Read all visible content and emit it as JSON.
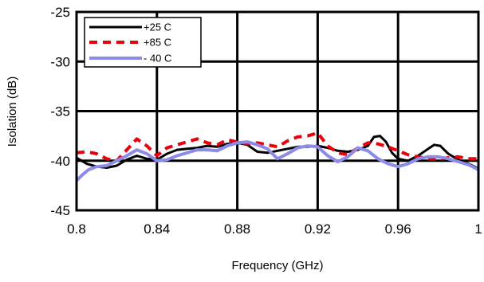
{
  "chart_data": {
    "type": "line",
    "title": "",
    "xlabel": "Frequency (GHz)",
    "ylabel": "Isolation (dB)",
    "xlim": [
      0.8,
      1.0
    ],
    "ylim": [
      -45,
      -25
    ],
    "x_ticks": [
      0.8,
      0.84,
      0.88,
      0.92,
      0.96,
      1.0
    ],
    "x_tick_labels": [
      "0.8",
      "0.84",
      "0.88",
      "0.92",
      "0.96",
      "1"
    ],
    "y_ticks": [
      -45,
      -40,
      -35,
      -30,
      -25
    ],
    "y_tick_labels": [
      "-45",
      "-40",
      "-35",
      "-30",
      "-25"
    ],
    "grid": true,
    "legend_position": "top-left",
    "series": [
      {
        "name": "+25 C",
        "color": "#000000",
        "style": "solid",
        "x": [
          0.8,
          0.805,
          0.81,
          0.815,
          0.82,
          0.825,
          0.83,
          0.835,
          0.84,
          0.845,
          0.85,
          0.855,
          0.86,
          0.865,
          0.87,
          0.875,
          0.88,
          0.885,
          0.89,
          0.895,
          0.9,
          0.905,
          0.91,
          0.915,
          0.92,
          0.925,
          0.93,
          0.935,
          0.94,
          0.945,
          0.948,
          0.951,
          0.954,
          0.957,
          0.96,
          0.965,
          0.97,
          0.975,
          0.978,
          0.981,
          0.985,
          0.99,
          0.995,
          1.0
        ],
        "y": [
          -39.7,
          -40.3,
          -40.6,
          -40.7,
          -40.5,
          -39.9,
          -39.5,
          -39.8,
          -39.9,
          -39.3,
          -38.9,
          -38.8,
          -38.7,
          -38.5,
          -38.6,
          -38.3,
          -38.2,
          -38.4,
          -39.1,
          -39.2,
          -39.0,
          -38.8,
          -38.6,
          -38.6,
          -38.5,
          -38.7,
          -39.0,
          -39.1,
          -38.9,
          -38.5,
          -37.6,
          -37.5,
          -38.1,
          -39.2,
          -39.8,
          -40.0,
          -39.5,
          -38.8,
          -38.4,
          -38.5,
          -39.3,
          -39.9,
          -40.3,
          -40.8
        ]
      },
      {
        "name": "+85 C",
        "color": "#e8000b",
        "style": "dashed",
        "x": [
          0.8,
          0.805,
          0.81,
          0.815,
          0.82,
          0.825,
          0.83,
          0.835,
          0.84,
          0.845,
          0.85,
          0.855,
          0.86,
          0.865,
          0.87,
          0.875,
          0.88,
          0.885,
          0.89,
          0.895,
          0.9,
          0.905,
          0.91,
          0.915,
          0.92,
          0.925,
          0.93,
          0.935,
          0.94,
          0.945,
          0.95,
          0.955,
          0.96,
          0.965,
          0.97,
          0.975,
          0.98,
          0.985,
          0.99,
          0.995,
          1.0
        ],
        "y": [
          -39.2,
          -39.1,
          -39.3,
          -39.8,
          -40.0,
          -38.9,
          -37.8,
          -38.5,
          -39.5,
          -38.7,
          -38.4,
          -38.1,
          -37.8,
          -38.2,
          -38.4,
          -37.9,
          -38.1,
          -38.3,
          -38.2,
          -38.4,
          -38.6,
          -38.0,
          -37.6,
          -37.5,
          -37.2,
          -38.5,
          -39.2,
          -39.4,
          -38.7,
          -38.2,
          -38.3,
          -38.6,
          -39.0,
          -39.4,
          -39.6,
          -39.8,
          -39.8,
          -39.7,
          -39.6,
          -39.8,
          -39.8
        ]
      },
      {
        "name": "- 40 C",
        "color": "#8c8ce8",
        "style": "solid",
        "x": [
          0.8,
          0.803,
          0.806,
          0.81,
          0.815,
          0.82,
          0.825,
          0.83,
          0.835,
          0.84,
          0.845,
          0.85,
          0.855,
          0.86,
          0.865,
          0.87,
          0.875,
          0.88,
          0.885,
          0.89,
          0.895,
          0.9,
          0.905,
          0.91,
          0.915,
          0.92,
          0.925,
          0.93,
          0.935,
          0.94,
          0.945,
          0.95,
          0.955,
          0.96,
          0.965,
          0.97,
          0.975,
          0.98,
          0.985,
          0.99,
          0.995,
          1.0
        ],
        "y": [
          -42.0,
          -41.4,
          -40.9,
          -40.6,
          -40.5,
          -40.0,
          -39.5,
          -38.9,
          -39.3,
          -40.0,
          -39.9,
          -39.5,
          -39.2,
          -38.9,
          -38.9,
          -39.0,
          -38.5,
          -38.2,
          -38.1,
          -38.4,
          -38.8,
          -39.8,
          -39.3,
          -38.7,
          -38.5,
          -38.6,
          -39.5,
          -40.1,
          -39.6,
          -38.7,
          -39.0,
          -39.8,
          -40.3,
          -40.6,
          -40.3,
          -39.8,
          -39.6,
          -39.6,
          -39.8,
          -40.1,
          -40.4,
          -40.9
        ]
      }
    ]
  }
}
